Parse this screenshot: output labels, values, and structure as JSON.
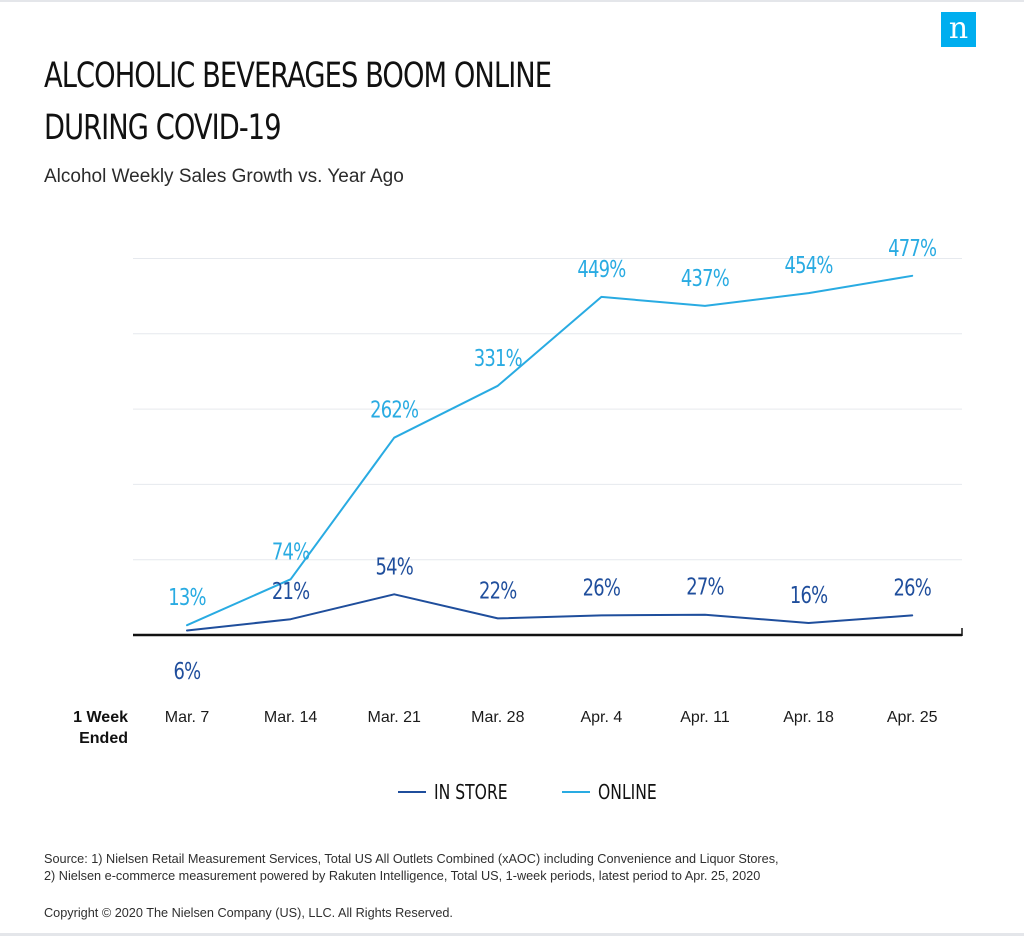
{
  "logo": {
    "text": "n",
    "color": "#00AEEF"
  },
  "title_lines": [
    "ALCOHOLIC BEVERAGES BOOM ONLINE",
    "DURING COVID-19"
  ],
  "subtitle": "Alcohol Weekly Sales Growth vs. Year Ago",
  "chart_data": {
    "type": "line",
    "title": "ALCOHOLIC BEVERAGES BOOM ONLINE DURING COVID-19",
    "subtitle": "Alcohol Weekly Sales Growth vs. Year Ago",
    "xlabel": "1 Week Ended",
    "ylabel": "",
    "categories": [
      "Mar. 7",
      "Mar. 14",
      "Mar. 21",
      "Mar. 28",
      "Apr. 4",
      "Apr. 11",
      "Apr. 18",
      "Apr. 25"
    ],
    "series": [
      {
        "name": "IN STORE",
        "color": "#1F4E9C",
        "values": [
          6,
          21,
          54,
          22,
          26,
          27,
          16,
          26
        ],
        "labels": [
          "6%",
          "21%",
          "54%",
          "22%",
          "26%",
          "27%",
          "16%",
          "26%"
        ]
      },
      {
        "name": "ONLINE",
        "color": "#29ABE2",
        "values": [
          13,
          74,
          262,
          331,
          449,
          437,
          454,
          477
        ],
        "labels": [
          "13%",
          "74%",
          "262%",
          "331%",
          "449%",
          "437%",
          "454%",
          "477%"
        ]
      }
    ],
    "ylim": [
      0,
      500
    ],
    "grid": true,
    "legend": "bottom-center"
  },
  "x_axis_title_lines": [
    "1 Week",
    "Ended"
  ],
  "source_lines": [
    "Source: 1) Nielsen Retail Measurement Services, Total US All Outlets Combined (xAOC) including Convenience and Liquor Stores,",
    "2) Nielsen e-commerce measurement powered by Rakuten Intelligence, Total US, 1-week periods, latest period to Apr. 25, 2020"
  ],
  "copyright": "Copyright © 2020 The Nielsen Company (US), LLC. All Rights Reserved."
}
